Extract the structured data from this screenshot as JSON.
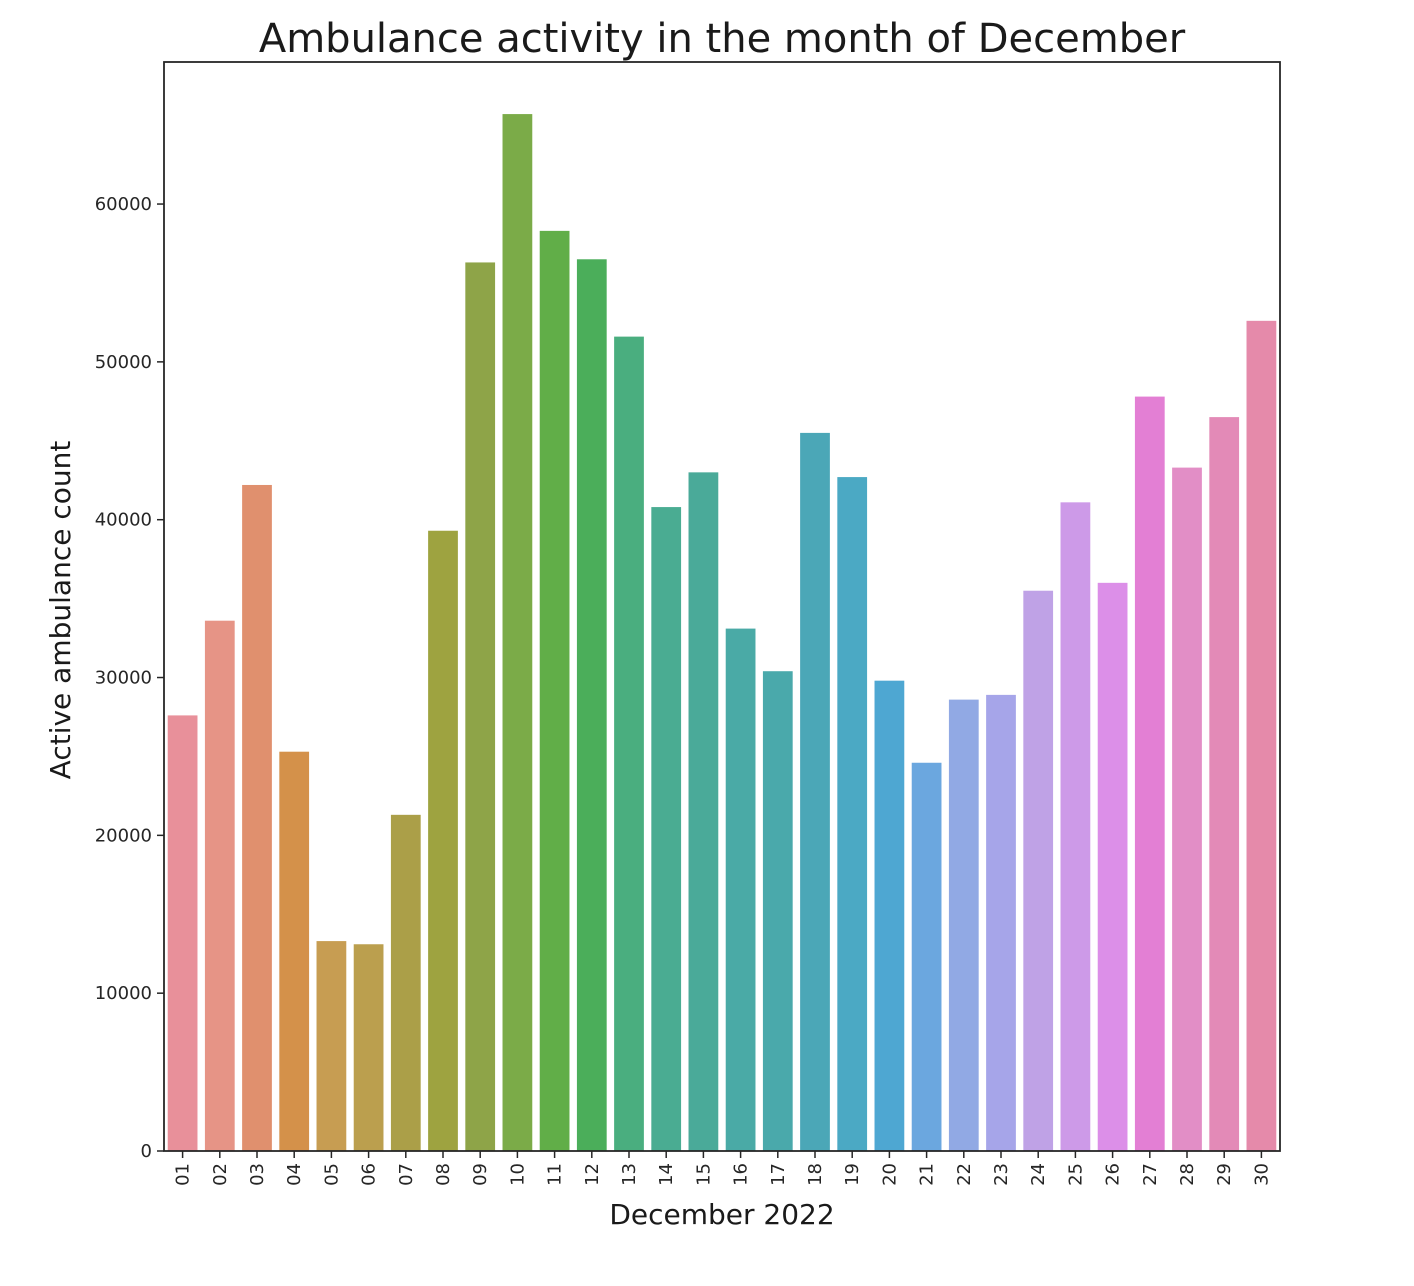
{
  "chart_data": {
    "type": "bar",
    "title": "Ambulance activity in the month of December",
    "xlabel": "December 2022",
    "ylabel": "Active ambulance count",
    "ylim": [
      0,
      69000
    ],
    "yticks": [
      0,
      10000,
      20000,
      30000,
      40000,
      50000,
      60000
    ],
    "grid": false,
    "legend": "none",
    "categories": [
      "01",
      "02",
      "03",
      "04",
      "05",
      "06",
      "07",
      "08",
      "09",
      "10",
      "11",
      "12",
      "13",
      "14",
      "15",
      "16",
      "17",
      "18",
      "19",
      "20",
      "21",
      "22",
      "23",
      "24",
      "25",
      "26",
      "27",
      "28",
      "29",
      "30"
    ],
    "values": [
      27600,
      33600,
      42200,
      25300,
      13300,
      13100,
      21300,
      39300,
      56300,
      65700,
      58300,
      56500,
      51600,
      40800,
      43000,
      33100,
      30400,
      45500,
      42700,
      29800,
      24600,
      28600,
      28900,
      35500,
      41100,
      36000,
      47800,
      43300,
      46500,
      52600
    ],
    "colors": [
      "#e8909a",
      "#e69486",
      "#e0906e",
      "#d4914a",
      "#c79d52",
      "#bb9f4e",
      "#ab9f48",
      "#9ea340",
      "#8ea448",
      "#7bab48",
      "#61ae48",
      "#4bae5a",
      "#4aae7f",
      "#4aac92",
      "#4aaa99",
      "#4aaaa6",
      "#4aa9ab",
      "#4ba7b7",
      "#4ba9c4",
      "#4ea7d2",
      "#6ba7df",
      "#91a9e4",
      "#a6a5e9",
      "#bfa2e6",
      "#cd9ae8",
      "#dc8fe8",
      "#e37fd4",
      "#e28ec6",
      "#e38ab7",
      "#e58aaa"
    ]
  }
}
